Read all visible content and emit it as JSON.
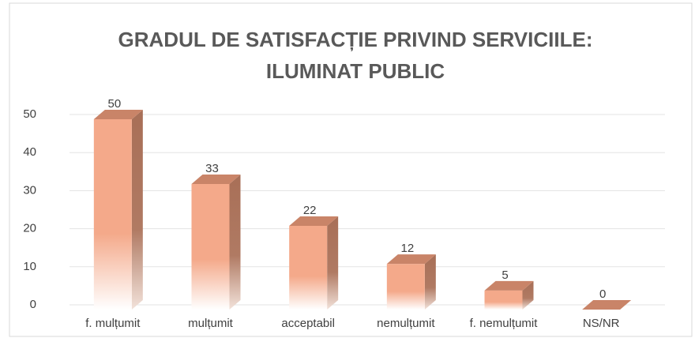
{
  "chart_data": {
    "type": "bar3d",
    "title": [
      "GRADUL DE SATISFACȚIE PRIVIND SERVICIILE:",
      "ILUMINAT PUBLIC"
    ],
    "categories": [
      "f. mulțumit",
      "mulțumit",
      "acceptabil",
      "nemulțumit",
      "f. nemulțumit",
      "NS/NR"
    ],
    "values": [
      50,
      33,
      22,
      12,
      5,
      0
    ],
    "color": "#f4a98a",
    "ylim": [
      0,
      50
    ],
    "yticks": [
      0,
      10,
      20,
      30,
      40,
      50
    ],
    "grid": true
  }
}
